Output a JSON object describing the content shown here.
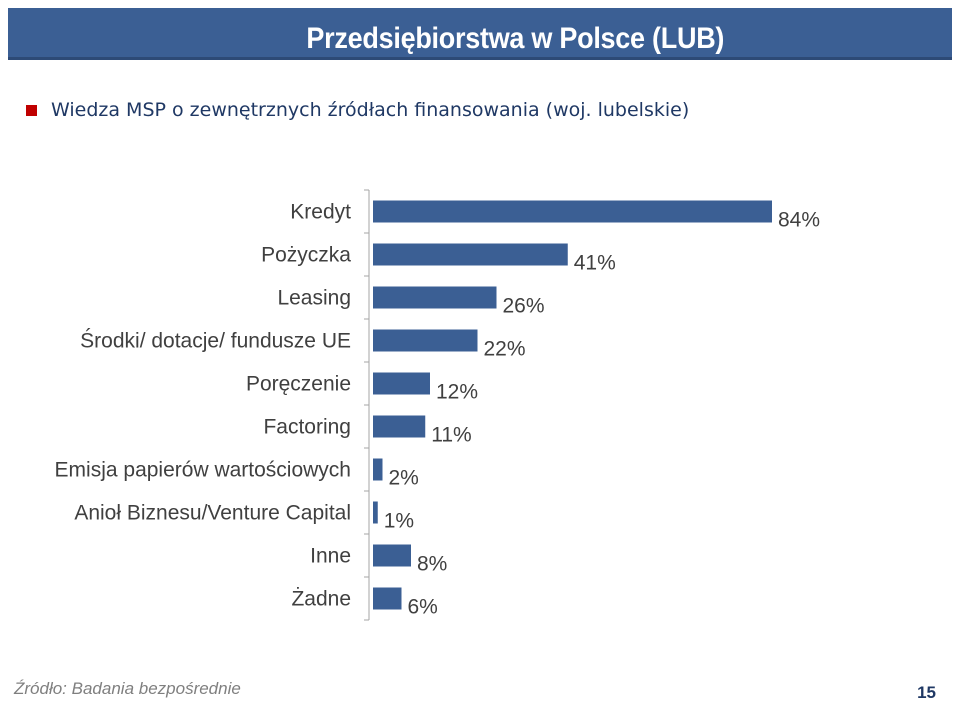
{
  "header": {
    "title": "Przedsiębiorstwa w Polsce (LUB)",
    "bar_color": "#3b5f94"
  },
  "subtitle": {
    "text": "Wiedza MSP o zewnętrznych źródłach finansowania (woj.  lubelskie)",
    "bullet_color": "#c00000"
  },
  "chart_data": {
    "type": "bar",
    "orientation": "horizontal",
    "categories": [
      "Kredyt",
      "Pożyczka",
      "Leasing",
      "Środki/ dotacje/ fundusze UE",
      "Poręczenie",
      "Factoring",
      "Emisja papierów wartościowych",
      "Anioł Biznesu/Venture Capital",
      "Inne",
      "Żadne"
    ],
    "values": [
      84,
      41,
      26,
      22,
      12,
      11,
      2,
      1,
      8,
      6
    ],
    "value_labels": [
      "84%",
      "41%",
      "26%",
      "22%",
      "12%",
      "11%",
      "2%",
      "1%",
      "8%",
      "6%"
    ],
    "unit": "%",
    "xlim": [
      0,
      84
    ],
    "bar_color": "#3b5f94",
    "grid": false,
    "legend": "none"
  },
  "footer": {
    "source": "Źródło: Badania bezpośrednie",
    "page_number": "15"
  }
}
